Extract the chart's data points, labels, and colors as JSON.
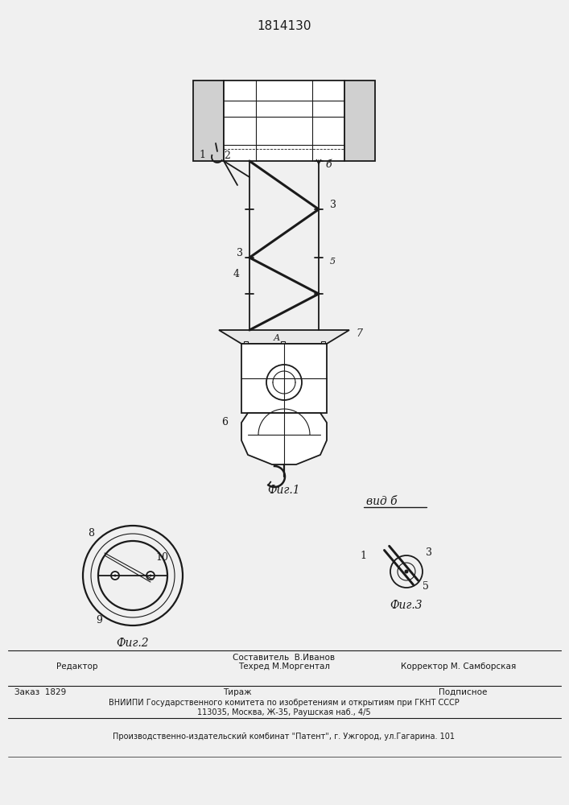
{
  "title": "1814130",
  "bg_color": "#f0f0f0",
  "line_color": "#1a1a1a",
  "fig1_label": "Фиг.1",
  "fig2_label": "Фиг.2",
  "fig3_label": "Фиг.3",
  "vid_label": "вид б",
  "footer_line1": "Составитель  В.Иванов",
  "footer_line2": "Техред М.Моргентал",
  "footer_line3": "Корректор М. Самборская",
  "footer_editor": "Редактор",
  "footer_order": "Заказ  1829",
  "footer_tirazh": "Тираж",
  "footer_podpis": "Подписное",
  "footer_vniiipi": "ВНИИПИ Государственного комитета по изобретениям и открытиям при ГКНТ СССР",
  "footer_addr": "113035, Москва, Ж-35, Раушская наб., 4/5",
  "footer_plant": "Производственно-издательский комбинат \"Патент\", г. Ужгород, ул.Гагарина. 101"
}
